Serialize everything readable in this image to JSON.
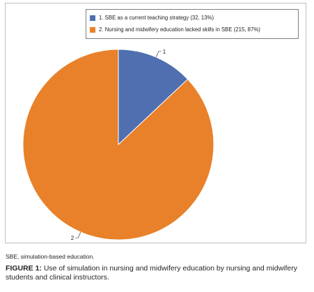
{
  "chart_data": {
    "type": "pie",
    "title": "",
    "slices": [
      {
        "label": "1",
        "legend": "1. SBE as a current teaching strategy (32, 13%)",
        "count": 32,
        "percent": 13,
        "color": "#4f6fb0"
      },
      {
        "label": "2",
        "legend": "2. Nursing and midwifery education lacked skills in SBE (215, 87%)",
        "count": 215,
        "percent": 87,
        "color": "#e8812a"
      }
    ],
    "legend_position": "top-right"
  },
  "footnote": "SBE, simulation-based education.",
  "caption": {
    "label": "FIGURE 1:",
    "text": " Use of simulation in nursing and midwifery education by nursing and midwifery students and clinical instructors."
  }
}
